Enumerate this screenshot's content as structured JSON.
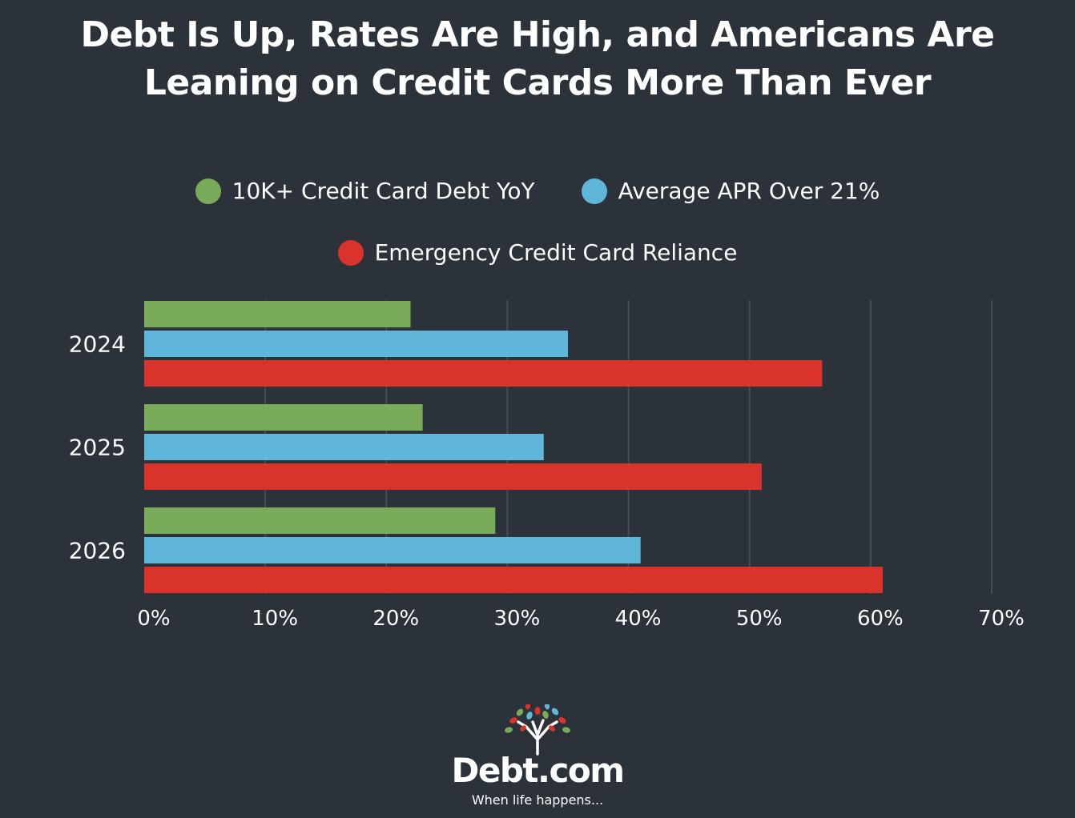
{
  "chart_data": {
    "type": "bar",
    "orientation": "horizontal",
    "title": "Debt Is Up, Rates Are High, and Americans Are Leaning on Credit Cards More Than Ever",
    "categories": [
      "2024",
      "2025",
      "2026"
    ],
    "series": [
      {
        "name": "10K+ Credit Card Debt YoY",
        "color": "#7aab5a",
        "values": [
          22,
          23,
          29
        ]
      },
      {
        "name": "Average APR Over 21%",
        "color": "#5fb6d8",
        "values": [
          35,
          33,
          41
        ]
      },
      {
        "name": "Emergency Credit Card Reliance",
        "color": "#d9332b",
        "values": [
          56,
          51,
          61
        ]
      }
    ],
    "xlim": [
      0,
      70
    ],
    "x_ticks": [
      "0%",
      "10%",
      "20%",
      "30%",
      "40%",
      "50%",
      "60%",
      "70%"
    ],
    "grid": "vertical",
    "legend_position": "top-center"
  },
  "logo": {
    "text": "Debt.com",
    "tagline": "When life happens..."
  }
}
